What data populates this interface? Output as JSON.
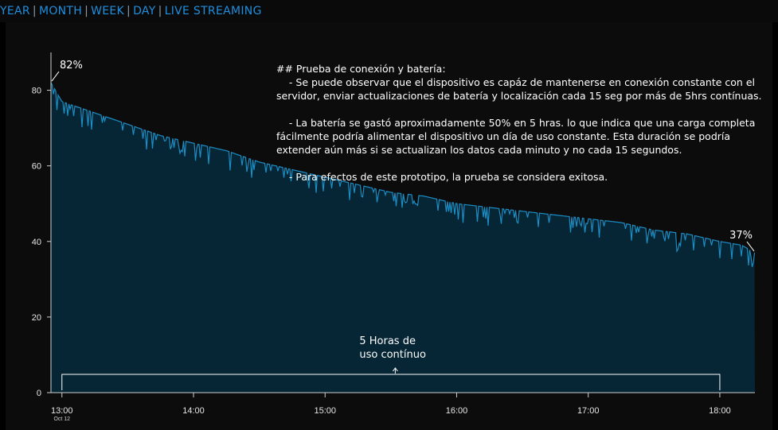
{
  "nav": {
    "items": [
      "YEAR",
      "MONTH",
      "WEEK",
      "DAY",
      "LIVE STREAMING"
    ]
  },
  "chart_data": {
    "type": "area",
    "title": "",
    "xlabel": "",
    "ylabel": "",
    "date_label": "Oct 12",
    "xlim": [
      "12:55",
      "18:16"
    ],
    "ylim": [
      0,
      90
    ],
    "yticks": [
      0,
      20,
      40,
      60,
      80
    ],
    "xticks": [
      "13:00",
      "14:00",
      "15:00",
      "16:00",
      "17:00",
      "18:00"
    ],
    "grid": false,
    "legend": "none",
    "colors": {
      "line": "#1b8ec6",
      "fill": "#062535",
      "background": "#000000"
    },
    "series": [
      {
        "x": [
          "12:55",
          "13:00",
          "13:15",
          "13:30",
          "13:45",
          "14:00",
          "14:15",
          "14:30",
          "14:45",
          "15:00",
          "15:15",
          "15:30",
          "15:45",
          "16:00",
          "16:15",
          "16:30",
          "16:45",
          "17:00",
          "17:15",
          "17:30",
          "17:45",
          "18:00",
          "18:10",
          "18:16"
        ],
        "values": [
          82,
          77,
          74,
          71,
          68,
          66,
          64,
          61,
          59,
          57,
          55,
          53,
          52,
          50,
          49,
          48,
          47,
          46,
          45,
          43,
          42,
          40,
          39,
          37
        ]
      }
    ],
    "annotations": [
      {
        "text": "82%",
        "x": "12:55",
        "y": 82
      },
      {
        "text": "37%",
        "x": "18:16",
        "y": 37
      },
      {
        "text": "5 Horas de\nuso contínuo",
        "x": "15:32",
        "y": 5
      }
    ]
  },
  "notes": {
    "text": "## Prueba de conexión y batería:\n    - Se puede observar que el dispositivo es capáz de mantenerse en conexión constante con el servidor, enviar actualizaciones de batería y localización cada 15 seg por más de 5hrs contínuas.\n\n    - La batería se gastó aproximadamente 50% en 5 hras. lo que indica que una carga completa fácilmente podría alimentar el dispositivo un día de uso constante. Esta duración se podría extender aún más si se actualizan los datos cada minuto y no cada 15 segundos.\n\n    - Para efectos de este prototipo, la prueba se considera exitosa."
  }
}
